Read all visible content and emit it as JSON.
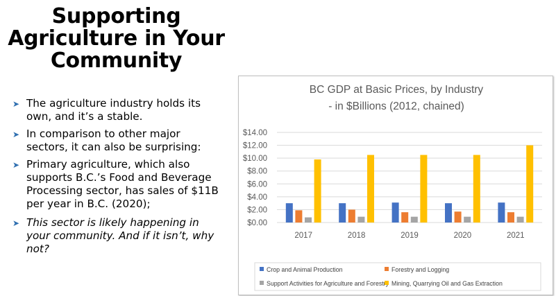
{
  "slide": {
    "title_lines": [
      "Supporting",
      "Agriculture in Your",
      "Community"
    ],
    "bullets": [
      "The agriculture industry holds its own, and it’s a stable.",
      "In comparison to other major sectors, it can also be surprising:",
      "Primary agriculture, which also supports B.C.’s Food and Beverage Processing sector, has sales of $11B per year in B.C. (2020);",
      "This sector is likely happening in your community. And if it isn’t, why not?"
    ]
  },
  "chart_data": {
    "type": "bar",
    "title_lines": [
      "BC GDP at Basic Prices, by Industry",
      "- in $Billions (2012, chained)"
    ],
    "categories": [
      "2017",
      "2018",
      "2019",
      "2020",
      "2021"
    ],
    "yticks": [
      "$0.00",
      "$2.00",
      "$4.00",
      "$6.00",
      "$8.00",
      "$10.00",
      "$12.00",
      "$14.00"
    ],
    "ylim": [
      0,
      14
    ],
    "grid": true,
    "legend_position": "bottom",
    "series": [
      {
        "name": "Crop and Animal Production",
        "color": "#4472c4",
        "values": [
          3.0,
          3.0,
          3.1,
          3.0,
          3.1
        ]
      },
      {
        "name": "Forestry and Logging",
        "color": "#ed7d31",
        "values": [
          1.9,
          2.0,
          1.6,
          1.7,
          1.6
        ]
      },
      {
        "name": "Support Activities for Agriculture and Forestry",
        "color": "#a5a5a5",
        "values": [
          0.8,
          0.9,
          0.9,
          0.9,
          0.9
        ]
      },
      {
        "name": "Mining, Quarrying Oil and Gas Extraction",
        "color": "#ffc000",
        "values": [
          9.8,
          10.5,
          10.5,
          10.5,
          12.0
        ]
      }
    ]
  }
}
